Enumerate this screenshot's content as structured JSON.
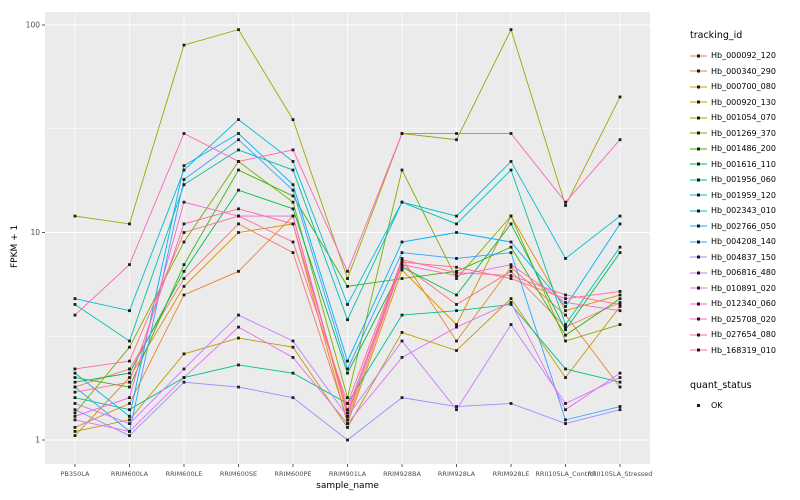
{
  "legend": {
    "tracking_title": "tracking_id",
    "quant_title": "quant_status",
    "quant_label": "OK"
  },
  "panel": {
    "bg": "#EBEBEB",
    "grid": "#FFFFFF",
    "tick_text": "#4D4D4D",
    "point_color": "#1a1a1a"
  },
  "chart_data": {
    "type": "line",
    "title": "",
    "xlabel": "sample_name",
    "ylabel": "FPKM + 1",
    "y_scale": "log10",
    "ylim": [
      0.8,
      115
    ],
    "y_ticks": [
      1,
      10,
      100
    ],
    "grid": true,
    "legend_position": "right",
    "point_shape": "square",
    "point_color": "#1a1a1a",
    "quant_status": "OK",
    "categories": [
      "PB350LA",
      "RRIM600LA",
      "RRIM600LE",
      "RRIM600SE",
      "RRIM600PE",
      "RRIM901LA",
      "RRIM928BA",
      "RRIM928LA",
      "RRIM928LE",
      "RRII105LA_Control",
      "RRII105LA_Stressed"
    ],
    "series": [
      {
        "name": "Hb_000092_120",
        "color": "#F8766D",
        "values": [
          1.8,
          2.2,
          6.0,
          11,
          8.0,
          1.25,
          7.0,
          4.5,
          6.5,
          3.5,
          4.6
        ]
      },
      {
        "name": "Hb_000340_290",
        "color": "#EA8331",
        "values": [
          1.15,
          1.5,
          5.0,
          6.5,
          12,
          1.3,
          7.5,
          3.0,
          6.8,
          4.0,
          1.8
        ]
      },
      {
        "name": "Hb_000700_080",
        "color": "#D89000",
        "values": [
          1.05,
          2.0,
          5.5,
          10,
          11,
          1.2,
          6.6,
          3.6,
          12,
          4.2,
          5.0
        ]
      },
      {
        "name": "Hb_000920_130",
        "color": "#C09B00",
        "values": [
          1.1,
          1.25,
          2.6,
          3.1,
          2.8,
          1.15,
          3.3,
          2.7,
          4.8,
          2.0,
          4.4
        ]
      },
      {
        "name": "Hb_001054_070",
        "color": "#A3A500",
        "values": [
          12,
          11,
          80,
          95,
          35,
          6.0,
          30,
          28,
          95,
          13.5,
          45
        ]
      },
      {
        "name": "Hb_001269_370",
        "color": "#7CAE00",
        "values": [
          1.35,
          2.8,
          9.0,
          22,
          14,
          1.6,
          20,
          6.0,
          12,
          3.0,
          3.6
        ]
      },
      {
        "name": "Hb_001486_200",
        "color": "#39B600",
        "values": [
          2.0,
          1.8,
          7.0,
          20,
          15,
          5.5,
          6.0,
          6.5,
          8.5,
          3.2,
          4.8
        ]
      },
      {
        "name": "Hb_001616_110",
        "color": "#00BB4E",
        "values": [
          1.9,
          2.1,
          6.5,
          16,
          13,
          2.1,
          6.8,
          5.0,
          11,
          3.4,
          8.0
        ]
      },
      {
        "name": "Hb_001956_060",
        "color": "#00C087",
        "values": [
          1.6,
          1.4,
          2.0,
          2.3,
          2.1,
          1.5,
          4.0,
          4.2,
          4.5,
          2.2,
          1.9
        ]
      },
      {
        "name": "Hb_001959_120",
        "color": "#00C0AF",
        "values": [
          4.5,
          3.0,
          17,
          25,
          20,
          3.8,
          14,
          11,
          20,
          3.6,
          8.5
        ]
      },
      {
        "name": "Hb_002343_010",
        "color": "#00BCD8",
        "values": [
          4.8,
          4.2,
          20,
          35,
          22,
          4.5,
          14,
          12,
          22,
          7.5,
          12
        ]
      },
      {
        "name": "Hb_002766_050",
        "color": "#00B0F6",
        "values": [
          2.1,
          1.3,
          21,
          30,
          17,
          2.4,
          9.0,
          10,
          9.0,
          4.4,
          11
        ]
      },
      {
        "name": "Hb_004208_140",
        "color": "#35A2FF",
        "values": [
          1.8,
          1.1,
          18,
          28,
          16,
          2.2,
          8.0,
          7.5,
          8.0,
          1.25,
          1.45
        ]
      },
      {
        "name": "Hb_004837_150",
        "color": "#9590FF",
        "values": [
          1.4,
          1.05,
          1.9,
          1.8,
          1.6,
          1.0,
          1.6,
          1.45,
          1.5,
          1.2,
          1.4
        ]
      },
      {
        "name": "Hb_006816_480",
        "color": "#C77CFF",
        "values": [
          1.5,
          1.2,
          2.2,
          4.0,
          3.0,
          1.3,
          3.0,
          1.4,
          3.6,
          1.5,
          2.0
        ]
      },
      {
        "name": "Hb_010891_020",
        "color": "#E76BF3",
        "values": [
          1.25,
          1.1,
          2.0,
          3.5,
          2.5,
          1.2,
          2.5,
          3.5,
          4.6,
          1.4,
          2.1
        ]
      },
      {
        "name": "Hb_012340_060",
        "color": "#FA62DB",
        "values": [
          1.3,
          1.6,
          14,
          12,
          12,
          1.35,
          7.0,
          6.2,
          7.0,
          4.6,
          4.2
        ]
      },
      {
        "name": "Hb_025708_020",
        "color": "#FF62BC",
        "values": [
          4.0,
          7.0,
          30,
          22,
          25,
          6.5,
          30,
          30,
          30,
          14,
          28
        ]
      },
      {
        "name": "Hb_027654_080",
        "color": "#FF6A98",
        "values": [
          1.7,
          1.9,
          11,
          13,
          11,
          1.4,
          7.2,
          6.8,
          6.0,
          4.8,
          5.2
        ]
      },
      {
        "name": "Hb_168319_010",
        "color": "#FF6C91",
        "values": [
          2.2,
          2.4,
          10,
          12,
          9.0,
          1.5,
          7.4,
          6.4,
          6.2,
          5.0,
          4.5
        ]
      }
    ]
  }
}
